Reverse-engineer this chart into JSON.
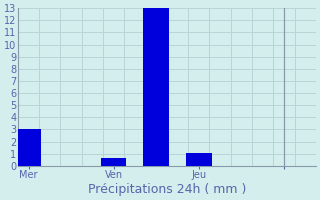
{
  "title": "Précipitations 24h ( mm )",
  "bar_color": "#0000dd",
  "background_color": "#d4eeee",
  "grid_color": "#b8d4d4",
  "axis_color": "#8899aa",
  "text_color": "#5566aa",
  "ylim": [
    0,
    13
  ],
  "yticks": [
    0,
    1,
    2,
    3,
    4,
    5,
    6,
    7,
    8,
    9,
    10,
    11,
    12,
    13
  ],
  "bar_positions": [
    0.5,
    2.5,
    4.5,
    6.5,
    8.5,
    10.5,
    12.5
  ],
  "values": [
    3,
    0,
    0.65,
    13,
    1.1,
    0,
    0
  ],
  "bar_width": 1.2,
  "xlim": [
    0,
    14
  ],
  "x_tick_positions": [
    0.5,
    4.5,
    8.5,
    12.5
  ],
  "x_tick_labels": [
    "Mer",
    "Ven",
    "Jeu",
    ""
  ],
  "vline_positions": [
    6.5,
    12.5
  ],
  "n_x_gridlines": 14,
  "title_fontsize": 9,
  "tick_fontsize": 7
}
